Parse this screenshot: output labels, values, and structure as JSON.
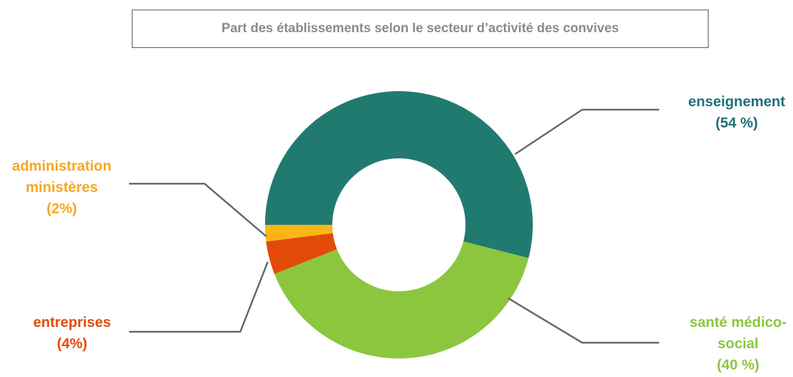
{
  "chart_data": {
    "type": "donut",
    "title": "Part des établissements selon le secteur d’activité des convives",
    "categories": [
      "enseignement",
      "santé médico-social",
      "entreprises",
      "administration ministères"
    ],
    "values": [
      54,
      40,
      4,
      2
    ],
    "value_labels": [
      "(54 %)",
      "(40 %)",
      "(4%)",
      "(2%)"
    ],
    "colors": [
      "#217a70",
      "#8cc63f",
      "#e34a0a",
      "#fbb515"
    ],
    "label_colors": [
      "#1f6f78",
      "#8cc63f",
      "#e34a0a",
      "#f5a623"
    ],
    "start_angle": 270,
    "direction": "clockwise"
  }
}
